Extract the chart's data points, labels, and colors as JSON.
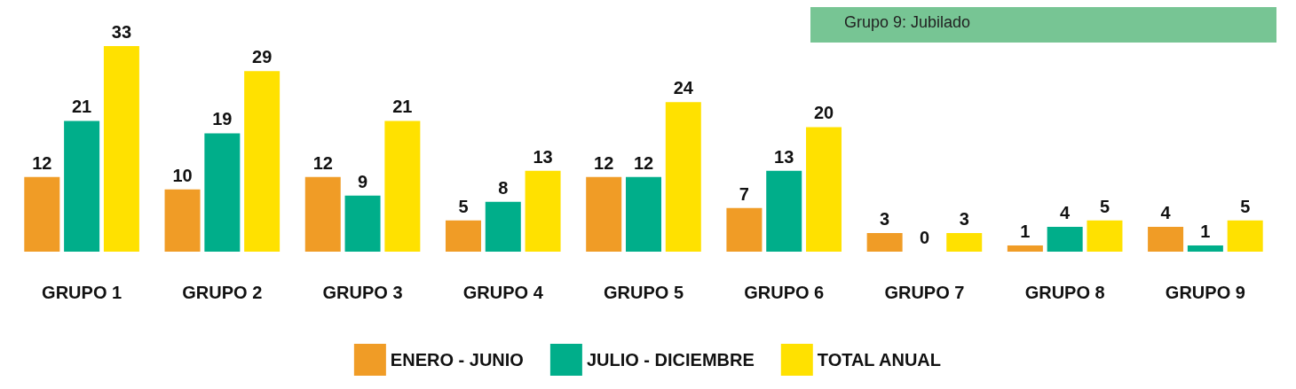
{
  "chart_data": {
    "type": "bar",
    "categories": [
      "GRUPO 1",
      "GRUPO 2",
      "GRUPO 3",
      "GRUPO 4",
      "GRUPO 5",
      "GRUPO 6",
      "GRUPO 7",
      "GRUPO 8",
      "GRUPO 9"
    ],
    "series": [
      {
        "name": "ENERO - JUNIO",
        "color": "#f09c26",
        "values": [
          12,
          10,
          12,
          5,
          12,
          7,
          3,
          1,
          4
        ]
      },
      {
        "name": "JULIO - DICIEMBRE",
        "color": "#00ae8a",
        "values": [
          21,
          19,
          9,
          8,
          12,
          13,
          0,
          4,
          1
        ]
      },
      {
        "name": "TOTAL ANUAL",
        "color": "#ffe100",
        "values": [
          33,
          29,
          21,
          13,
          24,
          20,
          3,
          5,
          5
        ]
      }
    ],
    "data_labels": true,
    "legend": "bottom",
    "annotations": [
      "Grupo 9: Jubilado"
    ]
  }
}
